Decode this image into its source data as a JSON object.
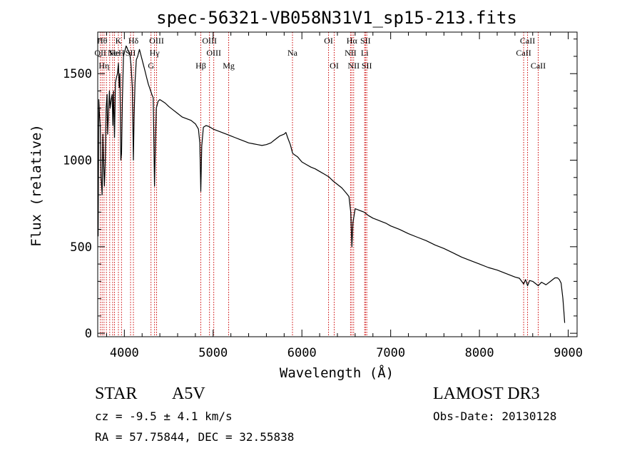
{
  "chart_data": {
    "type": "line",
    "title": "spec-56321-VB058N31V1_sp15-213.fits",
    "xlabel": "Wavelength (Å)",
    "ylabel": "Flux (relative)",
    "xlim": [
      3700,
      9100
    ],
    "ylim": [
      -20,
      1740
    ],
    "x_ticks": [
      4000,
      5000,
      6000,
      7000,
      8000,
      9000
    ],
    "x_tick_labels": [
      "4000",
      "5000",
      "6000",
      "7000",
      "8000",
      "9000"
    ],
    "y_ticks": [
      0,
      500,
      1000,
      1500
    ],
    "y_tick_labels": [
      "0",
      "500",
      "1000",
      "1500"
    ],
    "series": [
      {
        "name": "spectrum",
        "points": [
          [
            3705,
            560
          ],
          [
            3712,
            1350
          ],
          [
            3720,
            1260
          ],
          [
            3728,
            1200
          ],
          [
            3738,
            900
          ],
          [
            3750,
            800
          ],
          [
            3758,
            1150
          ],
          [
            3765,
            1000
          ],
          [
            3775,
            850
          ],
          [
            3785,
            1000
          ],
          [
            3795,
            1300
          ],
          [
            3805,
            1380
          ],
          [
            3812,
            1150
          ],
          [
            3820,
            1250
          ],
          [
            3832,
            1400
          ],
          [
            3840,
            1300
          ],
          [
            3852,
            1350
          ],
          [
            3862,
            1380
          ],
          [
            3870,
            1200
          ],
          [
            3878,
            1400
          ],
          [
            3889,
            1130
          ],
          [
            3900,
            1450
          ],
          [
            3912,
            1480
          ],
          [
            3922,
            1500
          ],
          [
            3933,
            1560
          ],
          [
            3942,
            1420
          ],
          [
            3950,
            1500
          ],
          [
            3960,
            1000
          ],
          [
            3968,
            1040
          ],
          [
            3978,
            1350
          ],
          [
            3990,
            1600
          ],
          [
            4000,
            1620
          ],
          [
            4010,
            1640
          ],
          [
            4020,
            1660
          ],
          [
            4030,
            1650
          ],
          [
            4045,
            1630
          ],
          [
            4060,
            1620
          ],
          [
            4075,
            1550
          ],
          [
            4090,
            1420
          ],
          [
            4102,
            1000
          ],
          [
            4110,
            1250
          ],
          [
            4120,
            1450
          ],
          [
            4135,
            1580
          ],
          [
            4150,
            1600
          ],
          [
            4170,
            1640
          ],
          [
            4190,
            1600
          ],
          [
            4210,
            1560
          ],
          [
            4230,
            1520
          ],
          [
            4250,
            1480
          ],
          [
            4270,
            1440
          ],
          [
            4290,
            1410
          ],
          [
            4310,
            1380
          ],
          [
            4325,
            1360
          ],
          [
            4340,
            850
          ],
          [
            4350,
            1100
          ],
          [
            4360,
            1300
          ],
          [
            4380,
            1340
          ],
          [
            4400,
            1350
          ],
          [
            4430,
            1340
          ],
          [
            4460,
            1330
          ],
          [
            4500,
            1310
          ],
          [
            4550,
            1290
          ],
          [
            4600,
            1270
          ],
          [
            4650,
            1250
          ],
          [
            4700,
            1240
          ],
          [
            4750,
            1230
          ],
          [
            4800,
            1210
          ],
          [
            4835,
            1180
          ],
          [
            4850,
            1100
          ],
          [
            4861,
            820
          ],
          [
            4872,
            1080
          ],
          [
            4890,
            1190
          ],
          [
            4920,
            1200
          ],
          [
            4950,
            1195
          ],
          [
            5000,
            1180
          ],
          [
            5050,
            1170
          ],
          [
            5100,
            1160
          ],
          [
            5150,
            1150
          ],
          [
            5200,
            1140
          ],
          [
            5250,
            1130
          ],
          [
            5300,
            1120
          ],
          [
            5350,
            1110
          ],
          [
            5400,
            1100
          ],
          [
            5450,
            1095
          ],
          [
            5500,
            1090
          ],
          [
            5550,
            1085
          ],
          [
            5600,
            1090
          ],
          [
            5650,
            1100
          ],
          [
            5700,
            1120
          ],
          [
            5750,
            1140
          ],
          [
            5800,
            1150
          ],
          [
            5820,
            1160
          ],
          [
            5840,
            1130
          ],
          [
            5870,
            1090
          ],
          [
            5895,
            1040
          ],
          [
            5920,
            1030
          ],
          [
            5950,
            1020
          ],
          [
            6000,
            990
          ],
          [
            6050,
            975
          ],
          [
            6100,
            960
          ],
          [
            6150,
            950
          ],
          [
            6200,
            935
          ],
          [
            6250,
            920
          ],
          [
            6300,
            905
          ],
          [
            6350,
            880
          ],
          [
            6400,
            860
          ],
          [
            6450,
            840
          ],
          [
            6500,
            810
          ],
          [
            6530,
            790
          ],
          [
            6550,
            700
          ],
          [
            6563,
            500
          ],
          [
            6575,
            640
          ],
          [
            6600,
            720
          ],
          [
            6650,
            710
          ],
          [
            6700,
            700
          ],
          [
            6750,
            680
          ],
          [
            6800,
            665
          ],
          [
            6850,
            655
          ],
          [
            6900,
            645
          ],
          [
            6950,
            635
          ],
          [
            7000,
            620
          ],
          [
            7100,
            600
          ],
          [
            7200,
            575
          ],
          [
            7300,
            555
          ],
          [
            7400,
            535
          ],
          [
            7500,
            510
          ],
          [
            7600,
            490
          ],
          [
            7700,
            465
          ],
          [
            7800,
            440
          ],
          [
            7900,
            420
          ],
          [
            8000,
            400
          ],
          [
            8100,
            380
          ],
          [
            8200,
            365
          ],
          [
            8300,
            345
          ],
          [
            8400,
            325
          ],
          [
            8450,
            318
          ],
          [
            8498,
            285
          ],
          [
            8520,
            310
          ],
          [
            8542,
            275
          ],
          [
            8565,
            305
          ],
          [
            8600,
            300
          ],
          [
            8662,
            275
          ],
          [
            8700,
            295
          ],
          [
            8750,
            280
          ],
          [
            8800,
            300
          ],
          [
            8850,
            320
          ],
          [
            8880,
            320
          ],
          [
            8900,
            310
          ],
          [
            8920,
            290
          ],
          [
            8940,
            200
          ],
          [
            8952,
            120
          ],
          [
            8960,
            60
          ]
        ]
      }
    ],
    "lines": [
      {
        "wavelength": 3730,
        "label": "OII",
        "row": 1
      },
      {
        "wavelength": 3750,
        "label": "Hθ",
        "row": 0
      },
      {
        "wavelength": 3771,
        "label": "Hη",
        "row": 2
      },
      {
        "wavelength": 3798,
        "label": "",
        "row": 0
      },
      {
        "wavelength": 3835,
        "label": "",
        "row": 0
      },
      {
        "wavelength": 3868,
        "label": "Ne",
        "row": 1
      },
      {
        "wavelength": 3889,
        "label": "He",
        "row": 1
      },
      {
        "wavelength": 3933,
        "label": "K",
        "row": 0
      },
      {
        "wavelength": 3968,
        "label": "H",
        "row": 1
      },
      {
        "wavelength": 4070,
        "label": "SII",
        "row": 1
      },
      {
        "wavelength": 4102,
        "label": "Hδ",
        "row": 0
      },
      {
        "wavelength": 4300,
        "label": "G",
        "row": 2
      },
      {
        "wavelength": 4340,
        "label": "Hγ",
        "row": 1
      },
      {
        "wavelength": 4363,
        "label": "OIII",
        "row": 0
      },
      {
        "wavelength": 4861,
        "label": "Hβ",
        "row": 2
      },
      {
        "wavelength": 4959,
        "label": "OIII",
        "row": 0
      },
      {
        "wavelength": 5007,
        "label": "OIII",
        "row": 1
      },
      {
        "wavelength": 5175,
        "label": "Mg",
        "row": 2
      },
      {
        "wavelength": 5894,
        "label": "Na",
        "row": 1
      },
      {
        "wavelength": 6300,
        "label": "OI",
        "row": 0
      },
      {
        "wavelength": 6364,
        "label": "OI",
        "row": 2
      },
      {
        "wavelength": 6548,
        "label": "NII",
        "row": 1
      },
      {
        "wavelength": 6563,
        "label": "Hα",
        "row": 0
      },
      {
        "wavelength": 6583,
        "label": "NII",
        "row": 2
      },
      {
        "wavelength": 6707,
        "label": "Li",
        "row": 1
      },
      {
        "wavelength": 6716,
        "label": "SII",
        "row": 0
      },
      {
        "wavelength": 6731,
        "label": "SII",
        "row": 2
      },
      {
        "wavelength": 8498,
        "label": "CaII",
        "row": 1
      },
      {
        "wavelength": 8542,
        "label": "CaII",
        "row": 0
      },
      {
        "wavelength": 8662,
        "label": "CaII",
        "row": 2
      }
    ],
    "colors": {
      "line_marker": "#cc0000",
      "spectrum": "#000000"
    }
  },
  "info": {
    "class_label": "STAR",
    "subclass_label": "A5V",
    "survey_label": "LAMOST DR3",
    "redshift_text": "cz = -9.5 ± 4.1 km/s",
    "obs_date_text": "Obs-Date: 20130128",
    "coords_text": "RA =  57.75844, DEC =  32.55838"
  }
}
